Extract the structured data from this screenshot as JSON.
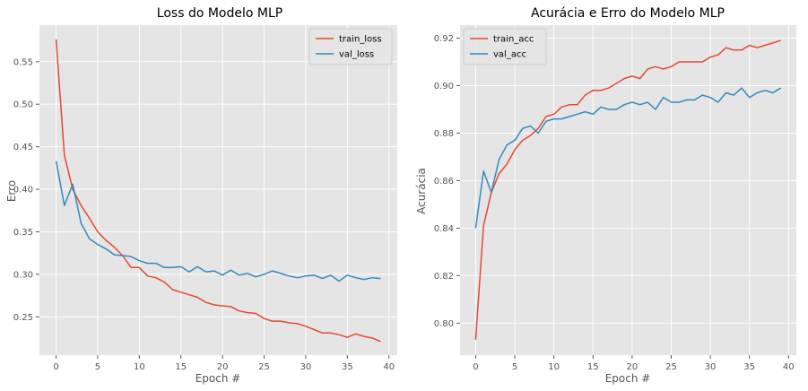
{
  "colors": {
    "train": "#e24a33",
    "val": "#348abd",
    "panel_bg": "#e5e5e5",
    "grid": "#ffffff"
  },
  "chart_data": [
    {
      "type": "line",
      "title": "Loss do Modelo MLP",
      "xlabel": "Epoch #",
      "ylabel": "Erro",
      "xlim": [
        -2,
        41
      ],
      "ylim": [
        0.205,
        0.593
      ],
      "xticks": [
        0,
        5,
        10,
        15,
        20,
        25,
        30,
        35,
        40
      ],
      "yticks": [
        0.25,
        0.3,
        0.35,
        0.4,
        0.45,
        0.5,
        0.55
      ],
      "ytick_decimals": 2,
      "grid": true,
      "legend": "upper right",
      "x": [
        0,
        1,
        2,
        3,
        4,
        5,
        6,
        7,
        8,
        9,
        10,
        11,
        12,
        13,
        14,
        15,
        16,
        17,
        18,
        19,
        20,
        21,
        22,
        23,
        24,
        25,
        26,
        27,
        28,
        29,
        30,
        31,
        32,
        33,
        34,
        35,
        36,
        37,
        38,
        39
      ],
      "series": [
        {
          "name": "train_loss",
          "color_key": "train",
          "values": [
            0.576,
            0.44,
            0.4,
            0.381,
            0.366,
            0.35,
            0.34,
            0.332,
            0.322,
            0.308,
            0.308,
            0.298,
            0.296,
            0.291,
            0.282,
            0.279,
            0.276,
            0.273,
            0.267,
            0.264,
            0.263,
            0.262,
            0.257,
            0.255,
            0.254,
            0.248,
            0.245,
            0.245,
            0.243,
            0.242,
            0.239,
            0.235,
            0.231,
            0.231,
            0.229,
            0.226,
            0.23,
            0.227,
            0.225,
            0.221
          ]
        },
        {
          "name": "val_loss",
          "color_key": "val",
          "values": [
            0.433,
            0.381,
            0.406,
            0.36,
            0.342,
            0.335,
            0.33,
            0.323,
            0.322,
            0.321,
            0.316,
            0.313,
            0.313,
            0.308,
            0.308,
            0.309,
            0.303,
            0.309,
            0.303,
            0.304,
            0.299,
            0.305,
            0.299,
            0.301,
            0.297,
            0.3,
            0.304,
            0.301,
            0.298,
            0.296,
            0.298,
            0.299,
            0.295,
            0.299,
            0.292,
            0.299,
            0.296,
            0.294,
            0.296,
            0.295
          ]
        }
      ]
    },
    {
      "type": "line",
      "title": "Acurácia e Erro do Modelo MLP",
      "xlabel": "Epoch #",
      "ylabel": "Acurácia",
      "xlim": [
        -2,
        41
      ],
      "ylim": [
        0.7865,
        0.9255
      ],
      "xticks": [
        0,
        5,
        10,
        15,
        20,
        25,
        30,
        35,
        40
      ],
      "yticks": [
        0.8,
        0.82,
        0.84,
        0.86,
        0.88,
        0.9,
        0.92
      ],
      "ytick_decimals": 2,
      "grid": true,
      "legend": "upper left",
      "x": [
        0,
        1,
        2,
        3,
        4,
        5,
        6,
        7,
        8,
        9,
        10,
        11,
        12,
        13,
        14,
        15,
        16,
        17,
        18,
        19,
        20,
        21,
        22,
        23,
        24,
        25,
        26,
        27,
        28,
        29,
        30,
        31,
        32,
        33,
        34,
        35,
        36,
        37,
        38,
        39
      ],
      "series": [
        {
          "name": "train_acc",
          "color_key": "train",
          "values": [
            0.793,
            0.841,
            0.855,
            0.863,
            0.867,
            0.873,
            0.877,
            0.879,
            0.882,
            0.887,
            0.888,
            0.891,
            0.892,
            0.892,
            0.896,
            0.898,
            0.898,
            0.899,
            0.901,
            0.903,
            0.904,
            0.903,
            0.907,
            0.908,
            0.907,
            0.908,
            0.91,
            0.91,
            0.91,
            0.91,
            0.912,
            0.913,
            0.916,
            0.915,
            0.915,
            0.917,
            0.916,
            0.917,
            0.918,
            0.919
          ]
        },
        {
          "name": "val_acc",
          "color_key": "val",
          "values": [
            0.84,
            0.864,
            0.855,
            0.869,
            0.875,
            0.877,
            0.882,
            0.883,
            0.88,
            0.885,
            0.886,
            0.886,
            0.887,
            0.888,
            0.889,
            0.888,
            0.891,
            0.89,
            0.89,
            0.892,
            0.893,
            0.892,
            0.893,
            0.89,
            0.895,
            0.893,
            0.893,
            0.894,
            0.894,
            0.896,
            0.895,
            0.893,
            0.897,
            0.896,
            0.899,
            0.895,
            0.897,
            0.898,
            0.897,
            0.899
          ]
        }
      ]
    }
  ]
}
